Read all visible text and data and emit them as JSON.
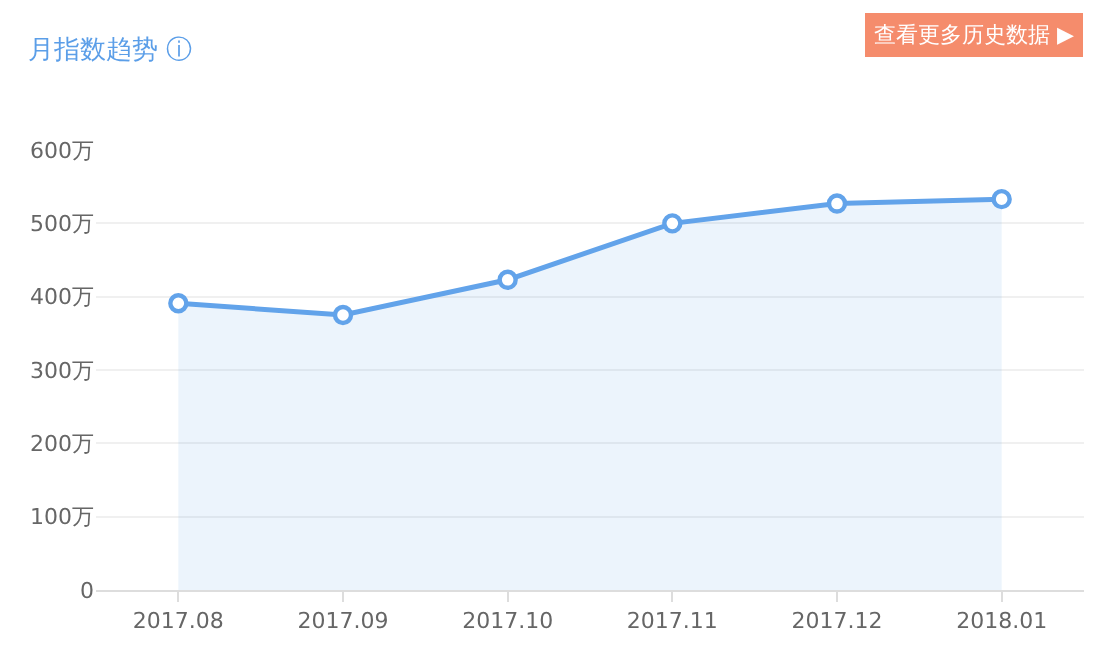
{
  "chart_data": {
    "type": "area",
    "title": "月指数趋势 ⓘ",
    "annotations": [
      "查看更多历史数据 ▶"
    ],
    "categories": [
      "2017.08",
      "2017.09",
      "2017.10",
      "2017.11",
      "2017.12",
      "2018.01"
    ],
    "series": [
      {
        "color": "#62a3ea",
        "values": [
          391,
          375,
          423,
          500,
          527,
          533
        ]
      }
    ],
    "ylim": [
      0,
      600
    ],
    "yticks": [
      {
        "value": 0,
        "label": "0"
      },
      {
        "value": 100,
        "label": "100万"
      },
      {
        "value": 200,
        "label": "200万"
      },
      {
        "value": 300,
        "label": "300万"
      },
      {
        "value": 400,
        "label": "400万"
      },
      {
        "value": 500,
        "label": "500万"
      },
      {
        "value": 600,
        "label": "600万"
      }
    ],
    "grid": "y",
    "marker": "circle",
    "line_style": "solid",
    "legend": false
  }
}
